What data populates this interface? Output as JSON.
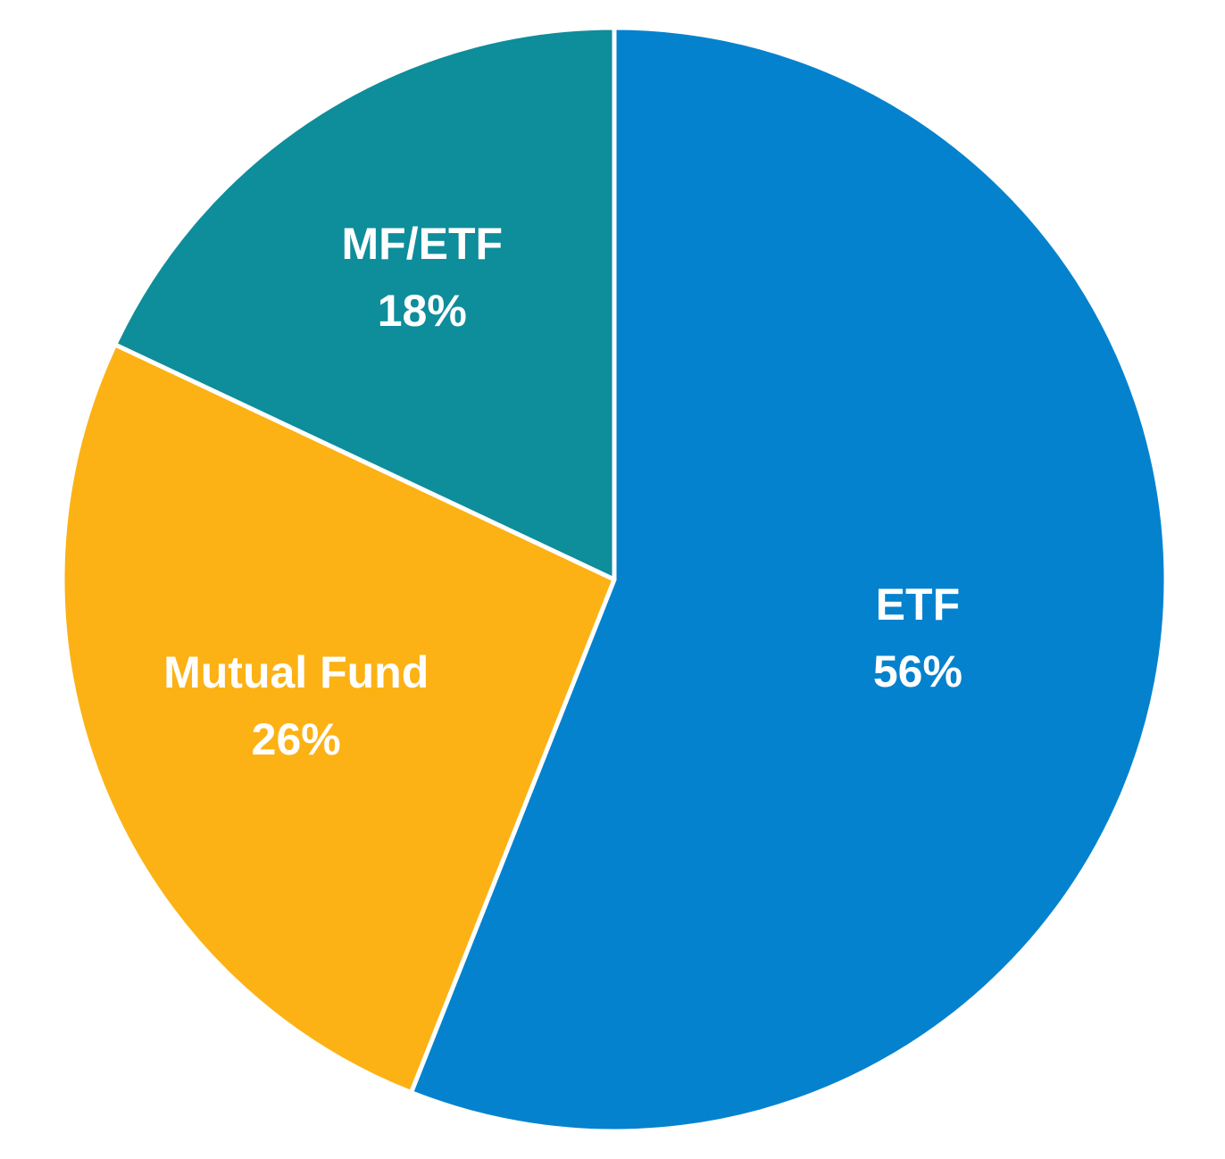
{
  "chart_data": {
    "type": "pie",
    "title": "",
    "direction": "clockwise",
    "start_angle_deg": 0,
    "background_color": "#FFFFFF",
    "separator_color": "#FFFFFF",
    "label_text_color": "#FFFFFF",
    "legend": "none",
    "slices": [
      {
        "label": "ETF",
        "value": 56,
        "percent_text": "56%",
        "color": "#0582CE",
        "label_r_frac": 0.56
      },
      {
        "label": "Mutual Fund",
        "value": 26,
        "percent_text": "26%",
        "color": "#FCB215",
        "label_r_frac": 0.62
      },
      {
        "label": "MF/ETF",
        "value": 18,
        "percent_text": "18%",
        "color": "#0E8D9B",
        "label_r_frac": 0.65
      }
    ]
  }
}
